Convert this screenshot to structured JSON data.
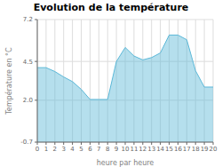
{
  "chart_data": {
    "type": "area",
    "title": "Evolution de la température",
    "x_label": "heure par heure",
    "y_label": "Température en °C",
    "x": [
      0,
      1,
      2,
      3,
      4,
      5,
      6,
      7,
      8,
      9,
      10,
      11,
      12,
      13,
      14,
      15,
      16,
      17,
      18,
      19,
      20
    ],
    "values": [
      4.1,
      4.1,
      3.85,
      3.5,
      3.2,
      2.7,
      2.05,
      2.05,
      2.05,
      4.5,
      5.4,
      4.85,
      4.6,
      4.75,
      5.05,
      6.2,
      6.2,
      5.9,
      3.9,
      2.85,
      2.85
    ],
    "color": "#5bb8d8",
    "xlim": [
      0,
      20
    ],
    "xticks": [
      0,
      1,
      2,
      3,
      4,
      5,
      6,
      7,
      8,
      9,
      10,
      11,
      12,
      13,
      14,
      15,
      16,
      17,
      18,
      19,
      20
    ],
    "ylim": [
      -0.7,
      7.2
    ],
    "yticks": [
      -0.7,
      {
        "value": 2.0,
        "label": "2.0"
      },
      4.5,
      7.2
    ],
    "grid": true
  }
}
